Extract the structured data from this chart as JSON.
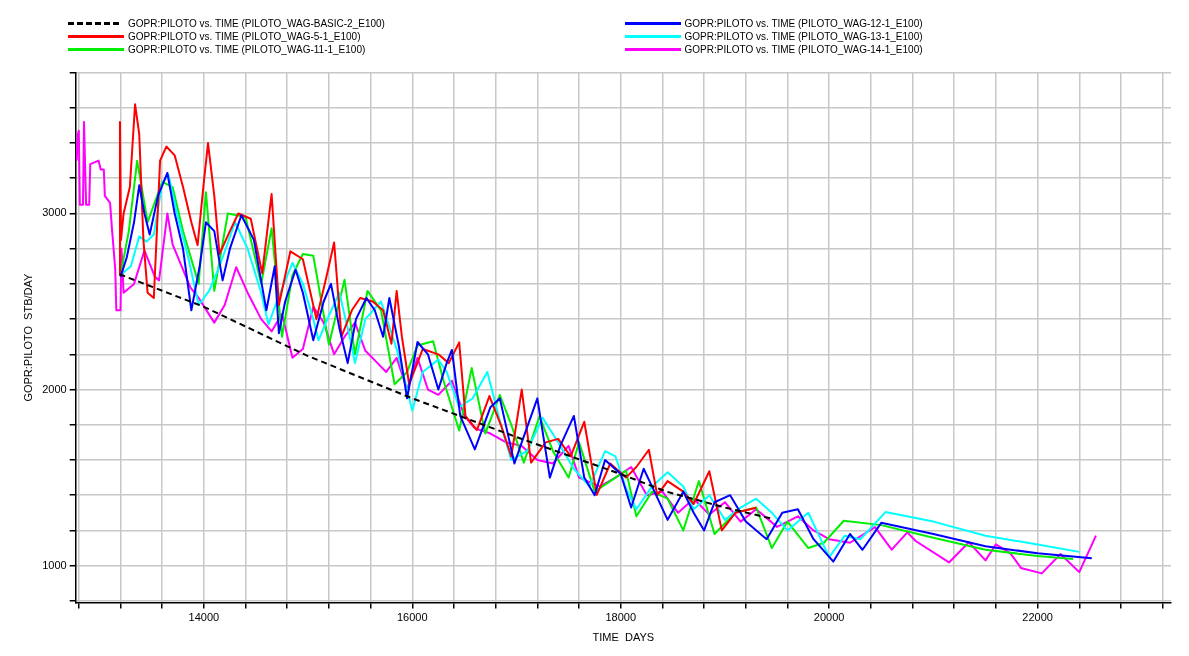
{
  "chart_data": {
    "type": "line",
    "xlabel": "TIME  DAYS",
    "ylabel": "GOPR:PILOTO  STB/DAY",
    "xlim": [
      12770,
      23280
    ],
    "ylim": [
      790,
      3800
    ],
    "xticks": [
      {
        "value": 12800,
        "label": null
      },
      {
        "value": 13200,
        "label": null
      },
      {
        "value": 13600,
        "label": null
      },
      14000,
      {
        "value": 14400,
        "label": null
      },
      {
        "value": 14800,
        "label": null
      },
      {
        "value": 15200,
        "label": null
      },
      {
        "value": 15600,
        "label": null
      },
      16000,
      {
        "value": 16400,
        "label": null
      },
      {
        "value": 16800,
        "label": null
      },
      {
        "value": 17200,
        "label": null
      },
      {
        "value": 17600,
        "label": null
      },
      18000,
      {
        "value": 18400,
        "label": null
      },
      {
        "value": 18800,
        "label": null
      },
      {
        "value": 19200,
        "label": null
      },
      {
        "value": 19600,
        "label": null
      },
      20000,
      {
        "value": 20400,
        "label": null
      },
      {
        "value": 20800,
        "label": null
      },
      {
        "value": 21200,
        "label": null
      },
      {
        "value": 21600,
        "label": null
      },
      22000,
      {
        "value": 22400,
        "label": null
      },
      {
        "value": 22800,
        "label": null
      },
      {
        "value": 23200,
        "label": null
      }
    ],
    "yticks": [
      {
        "value": 800,
        "label": null
      },
      1000,
      {
        "value": 1200,
        "label": null
      },
      {
        "value": 1400,
        "label": null
      },
      {
        "value": 1600,
        "label": null
      },
      {
        "value": 1800,
        "label": null
      },
      2000,
      {
        "value": 2200,
        "label": null
      },
      {
        "value": 2400,
        "label": null
      },
      {
        "value": 2600,
        "label": null
      },
      {
        "value": 2800,
        "label": null
      },
      3000,
      {
        "value": 3200,
        "label": null
      },
      {
        "value": 3400,
        "label": null
      },
      {
        "value": 3600,
        "label": null
      },
      {
        "value": 3800,
        "label": null
      }
    ],
    "grid": true,
    "legend": "top",
    "marker": "none",
    "series": [
      {
        "name": "GOPR:PILOTO vs. TIME (PILOTO_WAG-BASIC-2_E100)",
        "color": "#000000",
        "line_style": "dashed",
        "x": [
          13190,
          14000,
          15000,
          16000,
          17000,
          18000,
          18440,
          19000,
          19440
        ],
        "values": [
          2655,
          2470,
          2190,
          1950,
          1730,
          1520,
          1420,
          1330,
          1268
        ]
      },
      {
        "name": "GOPR:PILOTO vs. TIME (PILOTO_WAG-12-1_E100)",
        "color": "#0000ff",
        "x": [
          13200,
          13260,
          13330,
          13380,
          13430,
          13480,
          13560,
          13650,
          13720,
          13800,
          13880,
          13960,
          14020,
          14100,
          14180,
          14250,
          14360,
          14480,
          14600,
          14680,
          14720,
          14780,
          14880,
          14950,
          15050,
          15150,
          15220,
          15300,
          15380,
          15460,
          15560,
          15640,
          15720,
          15780,
          15870,
          15950,
          16050,
          16150,
          16250,
          16330,
          16380,
          16460,
          16600,
          16750,
          16840,
          16980,
          17050,
          17200,
          17320,
          17420,
          17550,
          17650,
          17750,
          17850,
          18000,
          18100,
          18220,
          18300,
          18450,
          18600,
          18700,
          18800,
          18900,
          19050,
          19200,
          19400,
          19550,
          19700,
          19850,
          20040,
          20200,
          20320,
          20500,
          21000,
          21500,
          22000,
          22520
        ],
        "values": [
          2640,
          2750,
          2950,
          3160,
          3000,
          2880,
          3100,
          3230,
          3000,
          2800,
          2450,
          2700,
          2950,
          2900,
          2620,
          2800,
          2990,
          2850,
          2450,
          2700,
          2320,
          2500,
          2680,
          2550,
          2280,
          2500,
          2600,
          2350,
          2150,
          2400,
          2520,
          2450,
          2300,
          2520,
          2250,
          1950,
          2270,
          2200,
          2000,
          2150,
          2225,
          1850,
          1660,
          1900,
          1950,
          1580,
          1700,
          1950,
          1500,
          1680,
          1850,
          1500,
          1400,
          1600,
          1520,
          1330,
          1550,
          1450,
          1260,
          1420,
          1300,
          1200,
          1360,
          1400,
          1250,
          1150,
          1300,
          1320,
          1150,
          1023,
          1180,
          1090,
          1243,
          1180,
          1110,
          1070,
          1042
        ]
      },
      {
        "name": "GOPR:PILOTO vs. TIME (PILOTO_WAG-5-1_E100)",
        "color": "#ff0000",
        "x": [
          13190,
          13195,
          13205,
          13230,
          13290,
          13340,
          13380,
          13420,
          13460,
          13520,
          13580,
          13640,
          13720,
          13800,
          13880,
          13940,
          14000,
          14040,
          14100,
          14150,
          14250,
          14330,
          14450,
          14560,
          14650,
          14720,
          14830,
          14950,
          15080,
          15180,
          15250,
          15320,
          15420,
          15500,
          15620,
          15720,
          15800,
          15850,
          15900,
          15970,
          16100,
          16250,
          16350,
          16450,
          16510,
          16620,
          16740,
          16850,
          16950,
          17050,
          17140,
          17280,
          17400,
          17520,
          17650,
          17770,
          17900,
          18050,
          18150,
          18270,
          18350,
          18450,
          18600,
          18700,
          18850,
          18970,
          19100,
          19300
        ],
        "values": [
          2650,
          3520,
          2850,
          3000,
          3150,
          3620,
          3450,
          2850,
          2550,
          2520,
          3300,
          3380,
          3330,
          3150,
          2950,
          2820,
          3180,
          3400,
          3100,
          2770,
          2900,
          3000,
          2970,
          2660,
          3110,
          2480,
          2785,
          2740,
          2400,
          2650,
          2835,
          2300,
          2450,
          2520,
          2500,
          2450,
          2260,
          2560,
          2300,
          2030,
          2230,
          2200,
          2150,
          2268,
          1850,
          1770,
          1963,
          1800,
          1620,
          2000,
          1585,
          1700,
          1720,
          1620,
          1817,
          1402,
          1580,
          1500,
          1560,
          1658,
          1400,
          1480,
          1420,
          1350,
          1536,
          1200,
          1300,
          1329
        ]
      },
      {
        "name": "GOPR:PILOTO vs. TIME (PILOTO_WAG-13-1_E100)",
        "color": "#00ffff",
        "x": [
          13200,
          13300,
          13380,
          13450,
          13520,
          13600,
          13660,
          13750,
          13850,
          13950,
          14050,
          14150,
          14300,
          14420,
          14550,
          14620,
          14700,
          14850,
          14950,
          15050,
          15100,
          15200,
          15300,
          15400,
          15450,
          15550,
          15700,
          15850,
          15950,
          16000,
          16100,
          16250,
          16330,
          16450,
          16580,
          16720,
          16850,
          16950,
          17100,
          17250,
          17400,
          17550,
          17700,
          17850,
          17950,
          18050,
          18150,
          18300,
          18450,
          18600,
          18700,
          18850,
          19000,
          19150,
          19300,
          19450,
          19600,
          19800,
          20000,
          20150,
          20300,
          20540,
          21000,
          21500,
          22000,
          22400
        ],
        "values": [
          2650,
          2700,
          2870,
          2840,
          2880,
          3170,
          3220,
          2980,
          2750,
          2480,
          2560,
          2700,
          2950,
          2800,
          2550,
          2370,
          2500,
          2720,
          2600,
          2400,
          2280,
          2420,
          2550,
          2300,
          2150,
          2400,
          2500,
          2230,
          2000,
          1880,
          2100,
          2170,
          2100,
          1900,
          1950,
          2100,
          1800,
          1600,
          1650,
          1840,
          1700,
          1550,
          1450,
          1650,
          1620,
          1440,
          1320,
          1450,
          1530,
          1450,
          1320,
          1400,
          1260,
          1330,
          1380,
          1300,
          1200,
          1300,
          1048,
          1170,
          1150,
          1304,
          1250,
          1170,
          1120,
          1078
        ]
      },
      {
        "name": "GOPR:PILOTO vs. TIME (PILOTO_WAG-11-1_E100)",
        "color": "#00ee00",
        "x": [
          13200,
          13280,
          13360,
          13460,
          13600,
          13700,
          13800,
          13950,
          14020,
          14100,
          14230,
          14400,
          14550,
          14650,
          14750,
          14850,
          14950,
          15050,
          15200,
          15350,
          15450,
          15570,
          15700,
          15830,
          15950,
          16050,
          16200,
          16300,
          16450,
          16570,
          16700,
          16840,
          16950,
          17070,
          17220,
          17350,
          17500,
          17600,
          17750,
          17950,
          18050,
          18150,
          18300,
          18450,
          18600,
          18750,
          18900,
          19100,
          19300,
          19450,
          19600,
          19800,
          19950,
          20140,
          20500,
          21000,
          21500,
          22000,
          22340
        ],
        "values": [
          2650,
          2900,
          3300,
          2950,
          3180,
          3150,
          2900,
          2600,
          3120,
          2560,
          3000,
          2980,
          2600,
          2916,
          2300,
          2650,
          2770,
          2760,
          2256,
          2623,
          2200,
          2560,
          2450,
          2030,
          2100,
          2250,
          2274,
          2050,
          1767,
          2122,
          1750,
          1969,
          1800,
          1585,
          1847,
          1650,
          1500,
          1700,
          1420,
          1500,
          1540,
          1280,
          1420,
          1380,
          1200,
          1480,
          1180,
          1300,
          1330,
          1100,
          1250,
          1100,
          1130,
          1255,
          1230,
          1158,
          1090,
          1055,
          1037
        ]
      },
      {
        "name": "GOPR:PILOTO vs. TIME (PILOTO_WAG-14-1_E100)",
        "color": "#ff00ff",
        "x": [
          12780,
          12790,
          12800,
          12810,
          12840,
          12850,
          12870,
          12900,
          12910,
          12990,
          13010,
          13040,
          13050,
          13100,
          13120,
          13150,
          13160,
          13200,
          13210,
          13230,
          13330,
          13430,
          13530,
          13570,
          13650,
          13700,
          13870,
          13950,
          14100,
          14200,
          14310,
          14420,
          14550,
          14650,
          14750,
          14850,
          14950,
          15050,
          15150,
          15250,
          15350,
          15450,
          15550,
          15650,
          15750,
          15850,
          15950,
          16050,
          16150,
          16250,
          16380,
          16500,
          16600,
          16750,
          16900,
          17050,
          17200,
          17350,
          17500,
          17600,
          17800,
          17950,
          18100,
          18250,
          18400,
          18550,
          18700,
          18850,
          19000,
          19150,
          19300,
          19500,
          19700,
          19850,
          20000,
          20200,
          20440,
          20600,
          20750,
          20830,
          21150,
          21340,
          21500,
          21600,
          21740,
          21840,
          22040,
          22220,
          22400,
          22560
        ],
        "values": [
          3300,
          3450,
          3470,
          3050,
          3050,
          3520,
          3050,
          3050,
          3280,
          3300,
          3250,
          3250,
          3100,
          3060,
          2900,
          2680,
          2450,
          2450,
          2800,
          2550,
          2600,
          2790,
          2640,
          2620,
          3000,
          2825,
          2580,
          2520,
          2380,
          2480,
          2695,
          2550,
          2400,
          2330,
          2430,
          2180,
          2230,
          2470,
          2380,
          2200,
          2300,
          2380,
          2220,
          2160,
          2100,
          2180,
          2000,
          2180,
          2000,
          1970,
          2050,
          1850,
          1780,
          1750,
          1700,
          1680,
          1600,
          1580,
          1680,
          1500,
          1450,
          1500,
          1560,
          1400,
          1420,
          1300,
          1380,
          1290,
          1360,
          1250,
          1320,
          1220,
          1280,
          1200,
          1150,
          1130,
          1219,
          1091,
          1189,
          1140,
          1018,
          1133,
          1030,
          1121,
          1070,
          987,
          956,
          1066,
          963,
          1170
        ]
      }
    ]
  }
}
